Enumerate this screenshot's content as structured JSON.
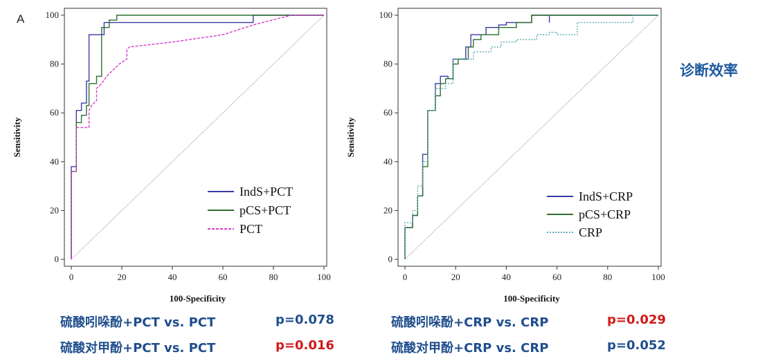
{
  "colors": {
    "inds": "#3a3aa6",
    "pcs": "#2e6e2e",
    "pct": "#d63ad0",
    "crp": "#5aa8b4",
    "diag": "#c8b8c8",
    "blue_text": "#1f4e8c",
    "red_text": "#d01818",
    "side": "#1f5aa0"
  },
  "side_label": "诊断效率",
  "chart_data": [
    {
      "type": "line",
      "panel_label": "A",
      "title": "",
      "xlabel": "100-Specificity",
      "ylabel": "Sensitivity",
      "xlim": [
        0,
        100
      ],
      "ylim": [
        0,
        100
      ],
      "xticks": [
        "0",
        "20",
        "40",
        "60",
        "80",
        "100"
      ],
      "yticks": [
        "0",
        "20",
        "40",
        "60",
        "80",
        "100"
      ],
      "legend_position": "bottom-right",
      "series": [
        {
          "name": "IndS+PCT",
          "color_key": "inds",
          "dash": "",
          "points": [
            [
              0,
              0
            ],
            [
              0,
              38
            ],
            [
              2,
              38
            ],
            [
              2,
              61
            ],
            [
              4,
              61
            ],
            [
              4,
              64
            ],
            [
              6,
              64
            ],
            [
              6,
              73
            ],
            [
              7,
              73
            ],
            [
              7,
              92
            ],
            [
              13,
              92
            ],
            [
              13,
              97
            ],
            [
              72,
              97
            ],
            [
              72,
              100
            ],
            [
              100,
              100
            ]
          ]
        },
        {
          "name": "pCS+PCT",
          "color_key": "pcs",
          "dash": "",
          "points": [
            [
              0,
              0
            ],
            [
              0,
              36
            ],
            [
              2,
              36
            ],
            [
              2,
              56
            ],
            [
              4,
              56
            ],
            [
              4,
              59
            ],
            [
              6,
              59
            ],
            [
              6,
              63
            ],
            [
              7,
              63
            ],
            [
              7,
              72
            ],
            [
              10,
              72
            ],
            [
              10,
              75
            ],
            [
              12,
              75
            ],
            [
              12,
              95
            ],
            [
              15,
              95
            ],
            [
              15,
              98
            ],
            [
              18,
              98
            ],
            [
              18,
              100
            ],
            [
              100,
              100
            ]
          ]
        },
        {
          "name": "PCT",
          "color_key": "pct",
          "dash": "4,2",
          "points": [
            [
              0,
              0
            ],
            [
              0,
              36
            ],
            [
              2,
              36
            ],
            [
              2,
              54
            ],
            [
              7,
              54
            ],
            [
              7,
              61
            ],
            [
              8,
              63
            ],
            [
              10,
              65
            ],
            [
              10,
              70
            ],
            [
              12,
              72
            ],
            [
              14,
              75
            ],
            [
              16,
              77
            ],
            [
              19,
              80
            ],
            [
              22,
              82
            ],
            [
              22,
              86
            ],
            [
              23,
              87
            ],
            [
              40,
              89
            ],
            [
              60,
              92
            ],
            [
              72,
              96
            ],
            [
              87,
              100
            ],
            [
              100,
              100
            ]
          ]
        }
      ]
    },
    {
      "type": "line",
      "panel_label": "",
      "title": "",
      "xlabel": "100-Specificity",
      "ylabel": "Sensitivity",
      "xlim": [
        0,
        100
      ],
      "ylim": [
        0,
        100
      ],
      "xticks": [
        "0",
        "20",
        "40",
        "60",
        "80",
        "100"
      ],
      "yticks": [
        "0",
        "20",
        "40",
        "60",
        "80",
        "100"
      ],
      "legend_position": "bottom-right",
      "series": [
        {
          "name": "IndS+CRP",
          "color_key": "inds",
          "dash": "",
          "points": [
            [
              0,
              0
            ],
            [
              0,
              13
            ],
            [
              3,
              13
            ],
            [
              3,
              18
            ],
            [
              5,
              18
            ],
            [
              5,
              26
            ],
            [
              7,
              26
            ],
            [
              7,
              43
            ],
            [
              9,
              43
            ],
            [
              9,
              61
            ],
            [
              12,
              61
            ],
            [
              12,
              72
            ],
            [
              14,
              72
            ],
            [
              14,
              75
            ],
            [
              17,
              75
            ],
            [
              17,
              74
            ],
            [
              19,
              74
            ],
            [
              19,
              82
            ],
            [
              24,
              82
            ],
            [
              24,
              87
            ],
            [
              26,
              87
            ],
            [
              26,
              92
            ],
            [
              32,
              92
            ],
            [
              32,
              95
            ],
            [
              37,
              95
            ],
            [
              37,
              96
            ],
            [
              40,
              96
            ],
            [
              40,
              97
            ],
            [
              50,
              97
            ],
            [
              50,
              100
            ],
            [
              57,
              100
            ],
            [
              57,
              97
            ],
            [
              57,
              100
            ],
            [
              100,
              100
            ]
          ]
        },
        {
          "name": "pCS+CRP",
          "color_key": "pcs",
          "dash": "",
          "points": [
            [
              0,
              0
            ],
            [
              0,
              13
            ],
            [
              3,
              13
            ],
            [
              3,
              18
            ],
            [
              5,
              18
            ],
            [
              5,
              26
            ],
            [
              7,
              26
            ],
            [
              7,
              38
            ],
            [
              9,
              38
            ],
            [
              9,
              61
            ],
            [
              12,
              61
            ],
            [
              12,
              67
            ],
            [
              14,
              67
            ],
            [
              14,
              72
            ],
            [
              16,
              72
            ],
            [
              16,
              74
            ],
            [
              19,
              74
            ],
            [
              19,
              80
            ],
            [
              21,
              80
            ],
            [
              21,
              82
            ],
            [
              25,
              82
            ],
            [
              25,
              87
            ],
            [
              27,
              87
            ],
            [
              27,
              90
            ],
            [
              30,
              90
            ],
            [
              30,
              92
            ],
            [
              37,
              92
            ],
            [
              37,
              95
            ],
            [
              44,
              95
            ],
            [
              44,
              97
            ],
            [
              50,
              97
            ],
            [
              50,
              100
            ],
            [
              100,
              100
            ]
          ]
        },
        {
          "name": "CRP",
          "color_key": "crp",
          "dash": "2,2",
          "points": [
            [
              0,
              0
            ],
            [
              0,
              15
            ],
            [
              3,
              15
            ],
            [
              3,
              20
            ],
            [
              5,
              20
            ],
            [
              5,
              30
            ],
            [
              7,
              30
            ],
            [
              7,
              40
            ],
            [
              9,
              40
            ],
            [
              9,
              61
            ],
            [
              12,
              61
            ],
            [
              12,
              70
            ],
            [
              16,
              70
            ],
            [
              16,
              72
            ],
            [
              19,
              72
            ],
            [
              19,
              82
            ],
            [
              27,
              82
            ],
            [
              27,
              85
            ],
            [
              34,
              85
            ],
            [
              34,
              87
            ],
            [
              38,
              87
            ],
            [
              38,
              89
            ],
            [
              44,
              89
            ],
            [
              44,
              90
            ],
            [
              52,
              90
            ],
            [
              52,
              92
            ],
            [
              57,
              92
            ],
            [
              57,
              93
            ],
            [
              60,
              93
            ],
            [
              60,
              92
            ],
            [
              68,
              92
            ],
            [
              68,
              97
            ],
            [
              90,
              97
            ],
            [
              90,
              100
            ],
            [
              100,
              100
            ]
          ]
        }
      ]
    }
  ],
  "comparisons": [
    {
      "text": "硫酸吲哚酚+PCT vs. PCT",
      "p": "p=0.078",
      "p_color_key": "blue_text"
    },
    {
      "text": "硫酸对甲酚+PCT vs. PCT",
      "p": "p=0.016",
      "p_color_key": "red_text"
    },
    {
      "text": "硫酸吲哚酚+CRP vs. CRP",
      "p": "p=0.029",
      "p_color_key": "red_text"
    },
    {
      "text": "硫酸对甲酚+CRP vs. CRP",
      "p": "p=0.052",
      "p_color_key": "blue_text"
    }
  ]
}
